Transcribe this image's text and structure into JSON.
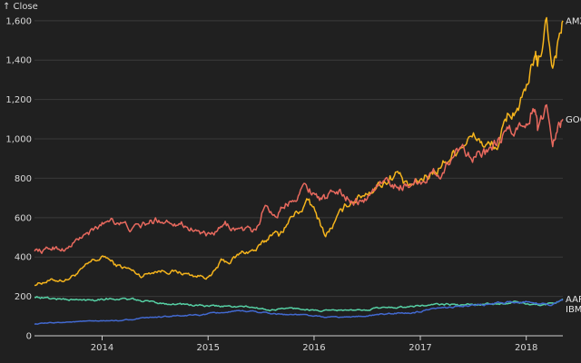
{
  "chart_data": {
    "type": "line",
    "ylabel": "↑ Close",
    "ylim": [
      0,
      1650
    ],
    "xlim": [
      "2013-05-13",
      "2018-05-07"
    ],
    "y_ticks": [
      0,
      200,
      400,
      600,
      800,
      1000,
      1200,
      1400,
      1600
    ],
    "y_tick_labels": [
      "0",
      "200",
      "400",
      "600",
      "800",
      "1,000",
      "1,200",
      "1,400",
      "1,600"
    ],
    "x_ticks": [
      "2014-01-01",
      "2015-01-01",
      "2016-01-01",
      "2017-01-01",
      "2018-01-01"
    ],
    "x_tick_labels": [
      "2014",
      "2015",
      "2016",
      "2017",
      "2018"
    ],
    "grid": "horizontal",
    "legend": "inline labels at right end of lines",
    "series": [
      {
        "name": "AMZN",
        "label": "AMZN",
        "color": "#f5b41c",
        "points": [
          [
            "2013-05-13",
            262
          ],
          [
            "2013-07-01",
            280
          ],
          [
            "2013-09-01",
            285
          ],
          [
            "2013-10-20",
            330
          ],
          [
            "2013-12-01",
            380
          ],
          [
            "2014-01-15",
            400
          ],
          [
            "2014-02-15",
            360
          ],
          [
            "2014-04-01",
            340
          ],
          [
            "2014-05-15",
            305
          ],
          [
            "2014-07-01",
            330
          ],
          [
            "2014-08-15",
            330
          ],
          [
            "2014-10-01",
            320
          ],
          [
            "2014-11-15",
            305
          ],
          [
            "2015-01-10",
            300
          ],
          [
            "2015-02-15",
            375
          ],
          [
            "2015-03-15",
            375
          ],
          [
            "2015-05-01",
            425
          ],
          [
            "2015-06-15",
            435
          ],
          [
            "2015-07-20",
            480
          ],
          [
            "2015-08-10",
            530
          ],
          [
            "2015-09-01",
            510
          ],
          [
            "2015-10-15",
            600
          ],
          [
            "2015-12-15",
            680
          ],
          [
            "2016-01-20",
            580
          ],
          [
            "2016-02-10",
            510
          ],
          [
            "2016-03-15",
            580
          ],
          [
            "2016-05-01",
            680
          ],
          [
            "2016-07-01",
            730
          ],
          [
            "2016-09-15",
            800
          ],
          [
            "2016-10-15",
            830
          ],
          [
            "2016-11-15",
            750
          ],
          [
            "2016-12-20",
            770
          ],
          [
            "2017-02-01",
            820
          ],
          [
            "2017-04-01",
            890
          ],
          [
            "2017-06-01",
            990
          ],
          [
            "2017-07-15",
            1010
          ],
          [
            "2017-08-15",
            960
          ],
          [
            "2017-10-01",
            970
          ],
          [
            "2017-10-28",
            1110
          ],
          [
            "2017-12-01",
            1160
          ],
          [
            "2018-01-10",
            1250
          ],
          [
            "2018-02-01",
            1450
          ],
          [
            "2018-02-09",
            1340
          ],
          [
            "2018-03-12",
            1600
          ],
          [
            "2018-04-02",
            1380
          ],
          [
            "2018-04-20",
            1500
          ],
          [
            "2018-05-07",
            1600
          ]
        ]
      },
      {
        "name": "GOOG",
        "label": "GOOG",
        "color": "#e8695e",
        "points": [
          [
            "2013-05-13",
            440
          ],
          [
            "2013-06-15",
            430
          ],
          [
            "2013-07-15",
            450
          ],
          [
            "2013-09-01",
            440
          ],
          [
            "2013-10-20",
            500
          ],
          [
            "2013-12-01",
            530
          ],
          [
            "2014-02-01",
            600
          ],
          [
            "2014-04-15",
            540
          ],
          [
            "2014-06-15",
            575
          ],
          [
            "2014-07-15",
            590
          ],
          [
            "2014-09-15",
            580
          ],
          [
            "2014-11-15",
            540
          ],
          [
            "2015-01-10",
            500
          ],
          [
            "2015-03-01",
            560
          ],
          [
            "2015-04-15",
            540
          ],
          [
            "2015-06-15",
            530
          ],
          [
            "2015-07-17",
            670
          ],
          [
            "2015-08-20",
            610
          ],
          [
            "2015-10-23",
            710
          ],
          [
            "2015-12-01",
            760
          ],
          [
            "2016-01-20",
            710
          ],
          [
            "2016-02-15",
            690
          ],
          [
            "2016-03-15",
            740
          ],
          [
            "2016-05-01",
            700
          ],
          [
            "2016-06-20",
            680
          ],
          [
            "2016-08-15",
            780
          ],
          [
            "2016-11-01",
            760
          ],
          [
            "2017-01-15",
            800
          ],
          [
            "2017-03-15",
            830
          ],
          [
            "2017-05-15",
            960
          ],
          [
            "2017-06-15",
            940
          ],
          [
            "2017-07-15",
            920
          ],
          [
            "2017-09-01",
            930
          ],
          [
            "2017-10-27",
            1030
          ],
          [
            "2017-12-01",
            1040
          ],
          [
            "2018-01-28",
            1170
          ],
          [
            "2018-02-09",
            1040
          ],
          [
            "2018-03-12",
            1160
          ],
          [
            "2018-04-02",
            1010
          ],
          [
            "2018-04-20",
            1070
          ],
          [
            "2018-05-07",
            1100
          ]
        ]
      },
      {
        "name": "AAPL",
        "label": "AAPL",
        "color": "#56d0a4",
        "points": [
          [
            "2013-05-13",
            200
          ],
          [
            "2013-07-01",
            190
          ],
          [
            "2013-09-01",
            185
          ],
          [
            "2013-11-01",
            180
          ],
          [
            "2014-01-15",
            190
          ],
          [
            "2014-04-01",
            185
          ],
          [
            "2014-06-01",
            175
          ],
          [
            "2014-08-01",
            165
          ],
          [
            "2014-10-01",
            160
          ],
          [
            "2015-01-01",
            150
          ],
          [
            "2015-03-01",
            150
          ],
          [
            "2015-06-01",
            145
          ],
          [
            "2015-08-01",
            130
          ],
          [
            "2015-10-01",
            140
          ],
          [
            "2015-12-01",
            135
          ],
          [
            "2016-02-01",
            125
          ],
          [
            "2016-04-01",
            130
          ],
          [
            "2016-06-01",
            128
          ],
          [
            "2016-08-01",
            140
          ],
          [
            "2016-10-01",
            145
          ],
          [
            "2016-12-01",
            150
          ],
          [
            "2017-02-01",
            155
          ],
          [
            "2017-04-01",
            160
          ],
          [
            "2017-06-01",
            155
          ],
          [
            "2017-08-01",
            160
          ],
          [
            "2017-10-01",
            165
          ],
          [
            "2017-12-01",
            170
          ],
          [
            "2018-02-01",
            155
          ],
          [
            "2018-04-01",
            165
          ],
          [
            "2018-05-07",
            187
          ]
        ]
      },
      {
        "name": "IBM",
        "label": "IBM",
        "color": "#4269d0",
        "points": [
          [
            "2013-05-13",
            60
          ],
          [
            "2013-09-01",
            70
          ],
          [
            "2014-01-01",
            75
          ],
          [
            "2014-03-01",
            78
          ],
          [
            "2014-06-01",
            90
          ],
          [
            "2014-09-01",
            100
          ],
          [
            "2014-12-01",
            105
          ],
          [
            "2015-03-01",
            120
          ],
          [
            "2015-06-01",
            125
          ],
          [
            "2015-09-01",
            110
          ],
          [
            "2015-12-01",
            105
          ],
          [
            "2016-02-01",
            95
          ],
          [
            "2016-05-01",
            95
          ],
          [
            "2016-08-01",
            105
          ],
          [
            "2016-10-01",
            115
          ],
          [
            "2016-12-01",
            115
          ],
          [
            "2017-02-01",
            130
          ],
          [
            "2017-05-01",
            150
          ],
          [
            "2017-08-01",
            155
          ],
          [
            "2017-11-01",
            170
          ],
          [
            "2018-01-15",
            175
          ],
          [
            "2018-02-15",
            165
          ],
          [
            "2018-04-01",
            160
          ],
          [
            "2018-05-07",
            180
          ]
        ]
      }
    ]
  }
}
